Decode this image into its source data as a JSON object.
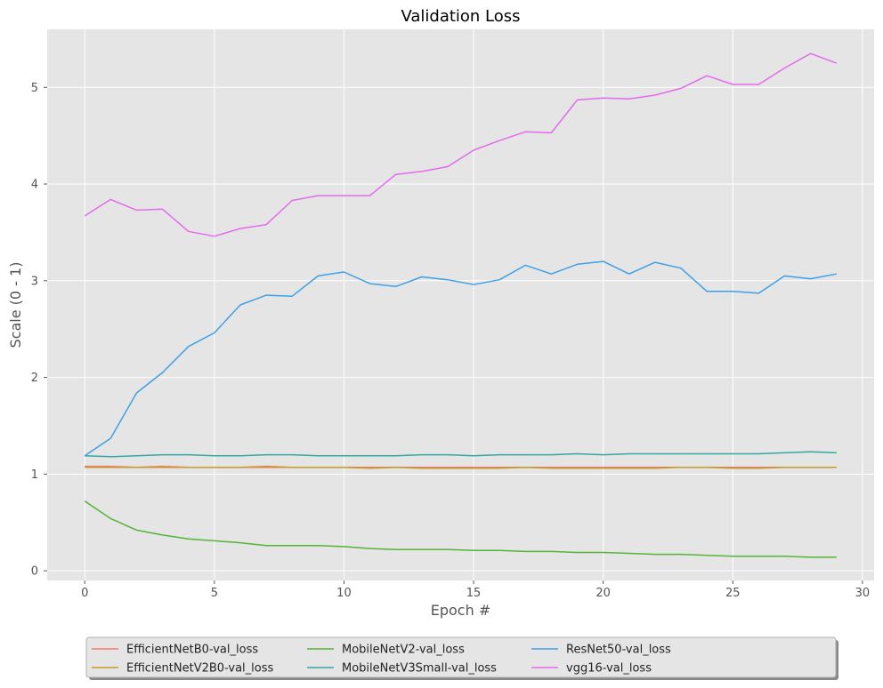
{
  "chart_data": {
    "type": "line",
    "title": "Validation Loss",
    "xlabel": "Epoch #",
    "ylabel": "Scale (0 - 1)",
    "xlim": [
      -1.45,
      30.45
    ],
    "ylim": [
      -0.1,
      5.6
    ],
    "xticks": [
      0,
      5,
      10,
      15,
      20,
      25,
      30
    ],
    "yticks": [
      0,
      1,
      2,
      3,
      4,
      5
    ],
    "grid": true,
    "legend_position": "bottom-center",
    "x": [
      0,
      1,
      2,
      3,
      4,
      5,
      6,
      7,
      8,
      9,
      10,
      11,
      12,
      13,
      14,
      15,
      16,
      17,
      18,
      19,
      20,
      21,
      22,
      23,
      24,
      25,
      26,
      27,
      28,
      29
    ],
    "series": [
      {
        "name": "EfficientNetB0-val_loss",
        "color": "#f8766d",
        "values": [
          1.08,
          1.08,
          1.07,
          1.08,
          1.07,
          1.07,
          1.07,
          1.07,
          1.07,
          1.07,
          1.07,
          1.07,
          1.07,
          1.07,
          1.07,
          1.07,
          1.07,
          1.07,
          1.07,
          1.07,
          1.07,
          1.07,
          1.07,
          1.07,
          1.07,
          1.07,
          1.07,
          1.07,
          1.07,
          1.07
        ]
      },
      {
        "name": "EfficientNetV2B0-val_loss",
        "color": "#c49a28",
        "values": [
          1.07,
          1.07,
          1.07,
          1.07,
          1.07,
          1.07,
          1.07,
          1.08,
          1.07,
          1.07,
          1.07,
          1.06,
          1.07,
          1.06,
          1.06,
          1.06,
          1.06,
          1.07,
          1.06,
          1.06,
          1.06,
          1.06,
          1.06,
          1.07,
          1.07,
          1.06,
          1.06,
          1.07,
          1.07,
          1.07
        ]
      },
      {
        "name": "MobileNetV2-val_loss",
        "color": "#53b435",
        "values": [
          0.72,
          0.54,
          0.42,
          0.37,
          0.33,
          0.31,
          0.29,
          0.26,
          0.26,
          0.26,
          0.25,
          0.23,
          0.22,
          0.22,
          0.22,
          0.21,
          0.21,
          0.2,
          0.2,
          0.19,
          0.19,
          0.18,
          0.17,
          0.17,
          0.16,
          0.15,
          0.15,
          0.15,
          0.14,
          0.14
        ]
      },
      {
        "name": "MobileNetV3Small-val_loss",
        "color": "#35a7a0",
        "values": [
          1.19,
          1.18,
          1.19,
          1.2,
          1.2,
          1.19,
          1.19,
          1.2,
          1.2,
          1.19,
          1.19,
          1.19,
          1.19,
          1.2,
          1.2,
          1.19,
          1.2,
          1.2,
          1.2,
          1.21,
          1.2,
          1.21,
          1.21,
          1.21,
          1.21,
          1.21,
          1.21,
          1.22,
          1.23,
          1.22
        ]
      },
      {
        "name": "ResNet50-val_loss",
        "color": "#3ea0e6",
        "values": [
          1.19,
          1.37,
          1.84,
          2.05,
          2.32,
          2.46,
          2.75,
          2.85,
          2.84,
          3.05,
          3.09,
          2.97,
          2.94,
          3.04,
          3.01,
          2.96,
          3.01,
          3.16,
          3.07,
          3.17,
          3.2,
          3.07,
          3.19,
          3.13,
          2.89,
          2.89,
          2.87,
          3.05,
          3.02,
          3.07
        ]
      },
      {
        "name": "vgg16-val_loss",
        "color": "#e36bec",
        "values": [
          3.67,
          3.84,
          3.73,
          3.74,
          3.51,
          3.46,
          3.54,
          3.58,
          3.83,
          3.88,
          3.88,
          3.88,
          4.1,
          4.13,
          4.18,
          4.35,
          4.45,
          4.54,
          4.53,
          4.87,
          4.89,
          4.88,
          4.92,
          4.99,
          5.12,
          5.03,
          5.03,
          5.2,
          5.35,
          5.25
        ]
      }
    ]
  }
}
